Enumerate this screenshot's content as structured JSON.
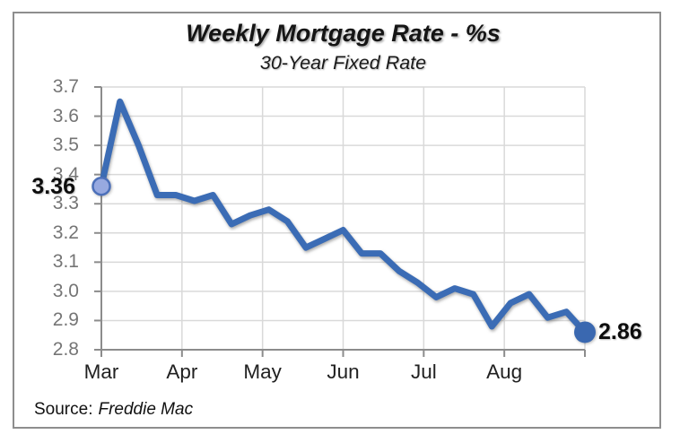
{
  "chart_data": {
    "type": "line",
    "title": "Weekly Mortgage Rate - %s",
    "subtitle": "30-Year Fixed Rate",
    "x_unit": "weekly points, March through early September",
    "categories_months": [
      "Mar",
      "Apr",
      "May",
      "Jun",
      "Jul",
      "Aug"
    ],
    "series": [
      {
        "name": "30-Year Fixed Rate",
        "values": [
          3.36,
          3.65,
          3.5,
          3.33,
          3.33,
          3.31,
          3.33,
          3.23,
          3.26,
          3.28,
          3.24,
          3.15,
          3.18,
          3.21,
          3.13,
          3.13,
          3.07,
          3.03,
          2.98,
          3.01,
          2.99,
          2.88,
          2.96,
          2.99,
          2.91,
          2.93,
          2.86
        ]
      }
    ],
    "y_ticks": [
      "3.7",
      "3.6",
      "3.5",
      "3.4",
      "3.3",
      "3.2",
      "3.1",
      "3.0",
      "2.9",
      "2.8"
    ],
    "ylim": [
      2.8,
      3.7
    ],
    "grid": true,
    "legend": "none",
    "first_point_label": "3.36",
    "last_point_label": "2.86",
    "colors": {
      "line": "#3b6cb5",
      "start_marker_fill": "#97a9e0",
      "start_marker_stroke": "#4c70ba",
      "end_marker": "#3a68b0",
      "gridline": "#d9d9d9",
      "axis": "#8c8c8c",
      "y_tick_text": "#757575",
      "x_tick_text": "#212121"
    }
  },
  "source": {
    "prefix": "Source:",
    "name": "Freddie Mac"
  }
}
